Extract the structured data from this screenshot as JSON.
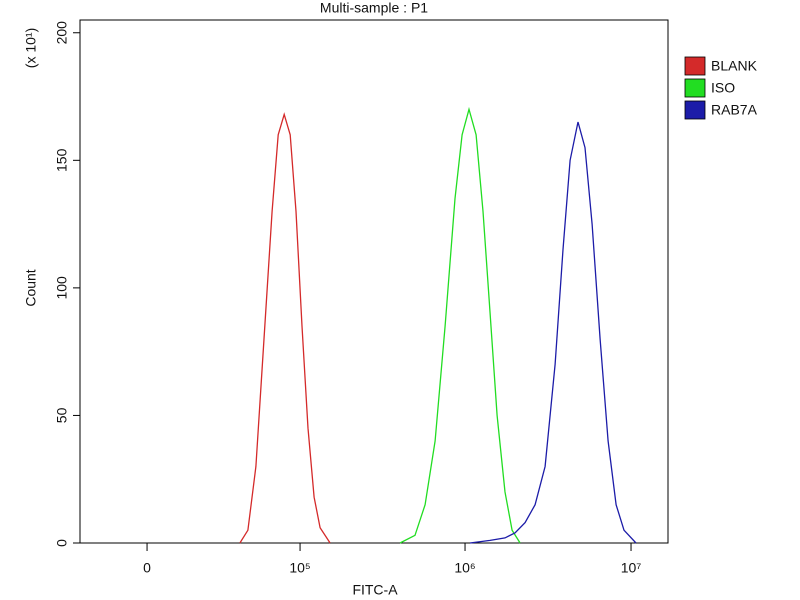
{
  "chart_data": {
    "type": "histogram-overlay",
    "title": "Multi-sample : P1",
    "x_label": "FITC-A",
    "y_label": "Count",
    "y_multiplier_label": "(x 10¹)",
    "xscale": "biexponential",
    "xlim": [
      -26000,
      16700000
    ],
    "xticks": [
      0,
      {
        "value": 100000,
        "label": "10⁵"
      },
      {
        "value": 1000000,
        "label": "10⁶"
      },
      {
        "value": 10000000,
        "label": "10⁷"
      }
    ],
    "ylim": [
      0,
      205
    ],
    "yticks": [
      0,
      50,
      100,
      150,
      200
    ],
    "legend": "right",
    "series": [
      {
        "name": "BLANK",
        "color": "#d42a2a",
        "x": [
          40700,
          46200,
          52300,
          59100,
          66700,
          72900,
          79600,
          86800,
          94400,
          102800,
          112000,
          122000,
          132800,
          152900
        ],
        "values": [
          0,
          5,
          30,
          80,
          130,
          160,
          168,
          160,
          130,
          85,
          45,
          18,
          6,
          0
        ]
      },
      {
        "name": "ISO",
        "color": "#22dd22",
        "x": [
          405600,
          499700,
          574500,
          660000,
          758000,
          870000,
          960000,
          1057000,
          1166000,
          1284000,
          1415000,
          1560000,
          1742000,
          1920000,
          2146000
        ],
        "values": [
          0,
          3,
          15,
          40,
          85,
          135,
          160,
          170,
          160,
          130,
          90,
          50,
          20,
          5,
          0
        ]
      },
      {
        "name": "RAB7A",
        "color": "#1c1ca8",
        "x": [
          1072000,
          1415000,
          1742000,
          2003000,
          2300000,
          2642000,
          3037000,
          3487000,
          3895000,
          4294000,
          4795000,
          5284000,
          5827000,
          6510000,
          7274000,
          8128000,
          9076000,
          10716000
        ],
        "values": [
          0,
          1,
          2,
          4,
          8,
          15,
          30,
          70,
          115,
          150,
          165,
          155,
          125,
          80,
          40,
          15,
          5,
          0
        ]
      }
    ]
  }
}
